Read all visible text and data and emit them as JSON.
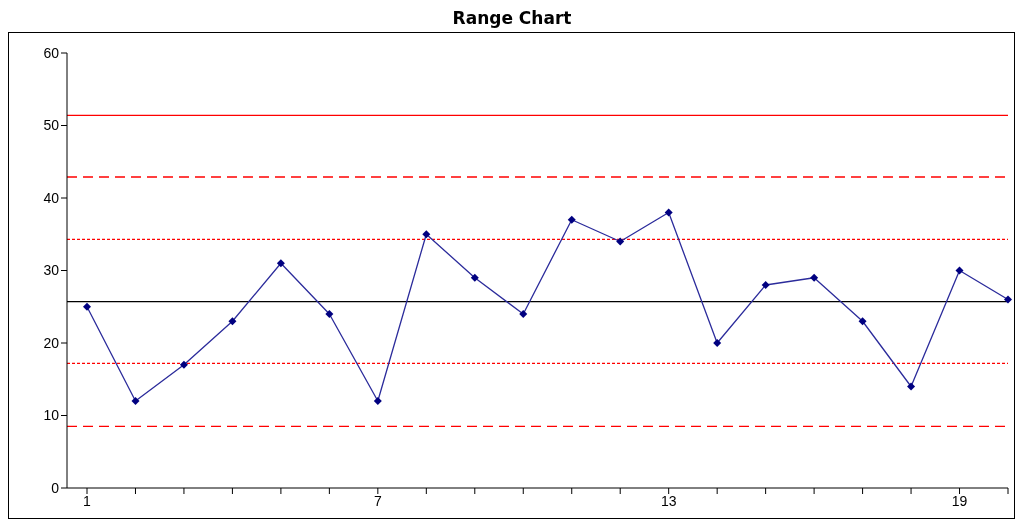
{
  "chart_data": {
    "type": "line",
    "title": "Range Chart",
    "categories": [
      "1",
      null,
      null,
      null,
      null,
      null,
      "7",
      null,
      null,
      null,
      null,
      null,
      "13",
      null,
      null,
      null,
      null,
      null,
      "19",
      null
    ],
    "series": [
      {
        "color": "#2b2b9b",
        "values": [
          25,
          12,
          17,
          23,
          31,
          24,
          12,
          35,
          29,
          24,
          37,
          34,
          38,
          20,
          28,
          29,
          23,
          14,
          30,
          26
        ]
      }
    ],
    "ylim": [
      0,
      60
    ],
    "yticks": [
      0,
      10,
      20,
      30,
      40,
      50,
      60
    ],
    "grid": false,
    "legend": false,
    "marker": "diamond",
    "line_style": "solid",
    "ref_lines": [
      {
        "axis": "y",
        "value": 51.4,
        "color": "#ff0000",
        "line_style": "solid"
      },
      {
        "axis": "y",
        "value": 42.9,
        "color": "#ff0000",
        "line_style": "dashed"
      },
      {
        "axis": "y",
        "value": 34.3,
        "color": "#ff0000",
        "line_style": "dotted"
      },
      {
        "axis": "y",
        "value": 25.7,
        "color": "#000000",
        "line_style": "solid"
      },
      {
        "axis": "y",
        "value": 17.2,
        "color": "#ff0000",
        "line_style": "dotted"
      },
      {
        "axis": "y",
        "value": 8.5,
        "color": "#ff0000",
        "line_style": "dashed"
      }
    ]
  }
}
